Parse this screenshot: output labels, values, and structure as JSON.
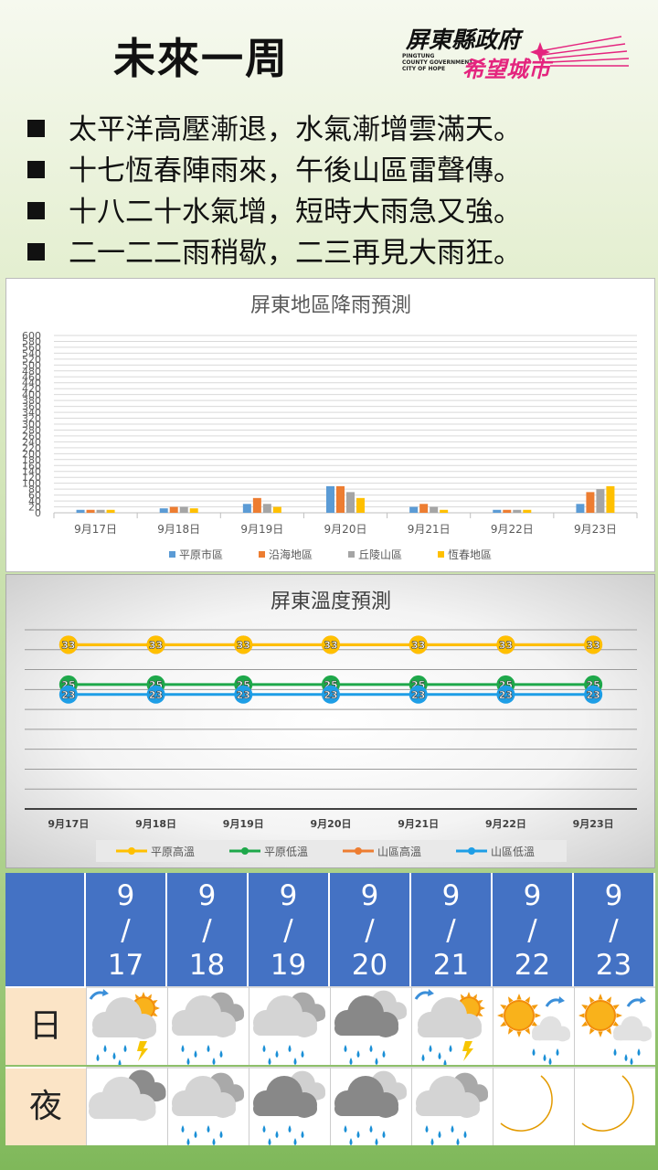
{
  "title": "未來一周",
  "logo": {
    "line1": "屏東縣政府",
    "english": [
      "PINGTUNG",
      "COUNTY GOVERNMENT",
      "CITY OF HOPE"
    ],
    "line2": "希望城市"
  },
  "bullets": [
    "太平洋高壓漸退，水氣漸增雲滿天。",
    "十七恆春陣雨來，午後山區雷聲傳。",
    "十八二十水氣增，短時大雨急又強。",
    "二一二二雨稍歇，二三再見大雨狂。"
  ],
  "chart_data": [
    {
      "type": "bar",
      "title": "屏東地區降雨預測",
      "categories": [
        "9月17日",
        "9月18日",
        "9月19日",
        "9月20日",
        "9月21日",
        "9月22日",
        "9月23日"
      ],
      "ylim": [
        0,
        600
      ],
      "yticks": [
        0,
        20,
        40,
        60,
        80,
        100,
        120,
        140,
        160,
        180,
        200,
        220,
        240,
        260,
        280,
        300,
        320,
        340,
        360,
        380,
        400,
        420,
        440,
        460,
        480,
        500,
        520,
        540,
        560,
        580,
        600
      ],
      "grid": true,
      "legend": "bottom",
      "series": [
        {
          "name": "平原市區",
          "color": "#5b9bd5",
          "values": [
            10,
            15,
            30,
            90,
            20,
            10,
            30
          ]
        },
        {
          "name": "沿海地區",
          "color": "#ed7d31",
          "values": [
            10,
            20,
            50,
            90,
            30,
            10,
            70
          ]
        },
        {
          "name": "丘陵山區",
          "color": "#a5a5a5",
          "values": [
            10,
            20,
            30,
            70,
            20,
            10,
            80
          ]
        },
        {
          "name": "恆春地區",
          "color": "#ffc000",
          "values": [
            10,
            15,
            20,
            50,
            10,
            10,
            90
          ]
        }
      ]
    },
    {
      "type": "line",
      "title": "屏東溫度預測",
      "categories": [
        "9月17日",
        "9月18日",
        "9月19日",
        "9月20日",
        "9月21日",
        "9月22日",
        "9月23日"
      ],
      "ylim": [
        0,
        36
      ],
      "grid": true,
      "legend": "bottom",
      "series": [
        {
          "name": "平原高溫",
          "color": "#ffc000",
          "values": [
            33,
            33,
            33,
            33,
            33,
            33,
            33
          ]
        },
        {
          "name": "平原低溫",
          "color": "#1ea84a",
          "values": [
            25,
            25,
            25,
            25,
            25,
            25,
            25
          ]
        },
        {
          "name": "山區高溫",
          "color": "#ed7d31",
          "values": [
            33,
            33,
            33,
            33,
            33,
            33,
            33
          ]
        },
        {
          "name": "山區低溫",
          "color": "#1e9ee6",
          "values": [
            23,
            23,
            23,
            23,
            23,
            23,
            23
          ]
        }
      ]
    }
  ],
  "forecast": {
    "rows": [
      "日",
      "夜"
    ],
    "dates": [
      {
        "month": "9",
        "sep": "/",
        "day": "17"
      },
      {
        "month": "9",
        "sep": "/",
        "day": "18"
      },
      {
        "month": "9",
        "sep": "/",
        "day": "19"
      },
      {
        "month": "9",
        "sep": "/",
        "day": "20"
      },
      {
        "month": "9",
        "sep": "/",
        "day": "21"
      },
      {
        "month": "9",
        "sep": "/",
        "day": "22"
      },
      {
        "month": "9",
        "sep": "/",
        "day": "23"
      }
    ],
    "day_icons": [
      "thunder-shower-sun-icon",
      "rain-icon",
      "rain-icon",
      "heavy-rain-icon",
      "thunder-shower-sun-icon",
      "sun-shower-icon",
      "sun-shower-icon"
    ],
    "night_icons": [
      "cloudy-icon",
      "rain-icon",
      "heavy-rain-icon",
      "heavy-rain-icon",
      "rain-icon",
      "moon-icon",
      "moon-icon"
    ],
    "header_color": "#4472c4",
    "label_color": "#fbe4c6"
  }
}
